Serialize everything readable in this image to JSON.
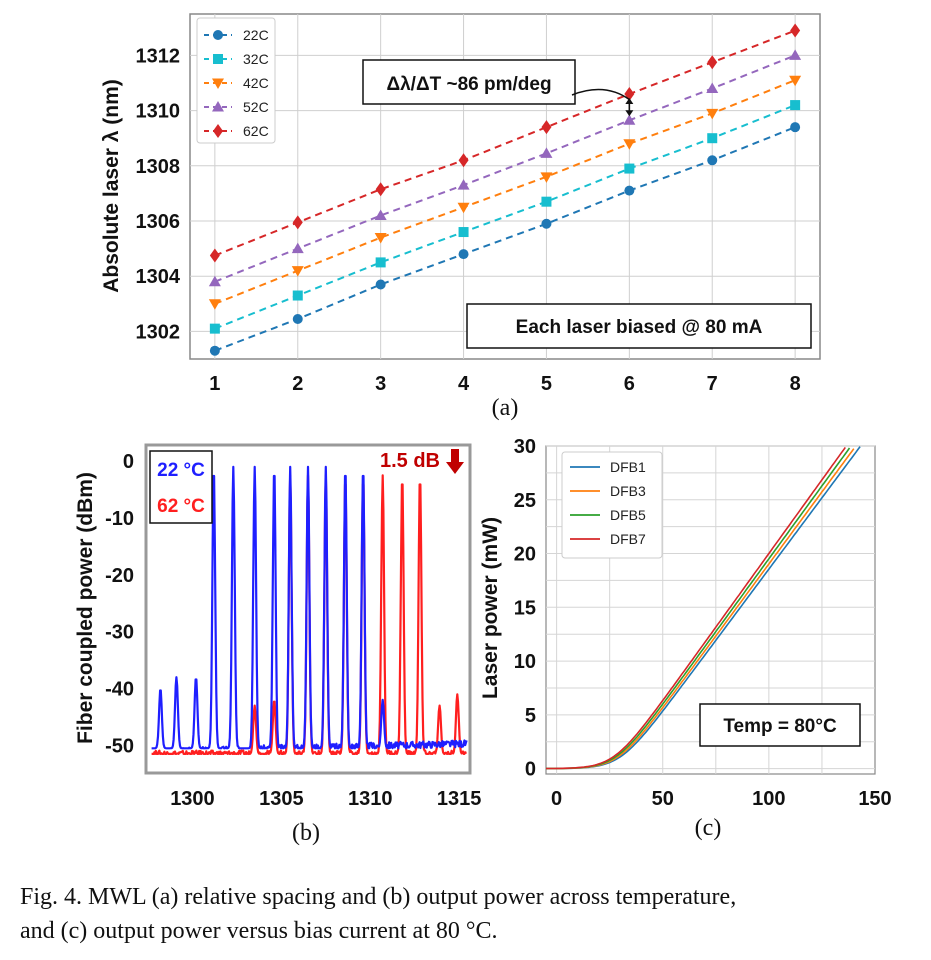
{
  "panel_labels": {
    "a": "(a)",
    "b": "(b)",
    "c": "(c)"
  },
  "caption": {
    "line1": "Fig. 4.   MWL (a) relative spacing and (b) output power across temperature,",
    "line2": "and (c) output power versus bias current at 80 °C."
  },
  "chart_data": [
    {
      "type": "line",
      "title": "",
      "xlabel": "",
      "ylabel": "Absolute laser λ (nm)",
      "x": [
        1,
        2,
        3,
        4,
        5,
        6,
        7,
        8
      ],
      "xlim": [
        0.7,
        8.3
      ],
      "ylim": [
        1301.0,
        1313.5
      ],
      "xticks": [
        1,
        2,
        3,
        4,
        5,
        6,
        7,
        8
      ],
      "yticks": [
        1302,
        1304,
        1306,
        1308,
        1310,
        1312
      ],
      "grid": true,
      "legend": "top-left",
      "series": [
        {
          "name": "22C",
          "color": "#1f77b4",
          "marker": "circle",
          "values": [
            1301.3,
            1302.45,
            1303.7,
            1304.8,
            1305.9,
            1307.1,
            1308.2,
            1309.4
          ]
        },
        {
          "name": "32C",
          "color": "#17becf",
          "marker": "square",
          "values": [
            1302.1,
            1303.3,
            1304.5,
            1305.6,
            1306.7,
            1307.9,
            1309.0,
            1310.2
          ]
        },
        {
          "name": "42C",
          "color": "#ff7f0e",
          "marker": "triangle-down",
          "values": [
            1303.0,
            1304.2,
            1305.4,
            1306.5,
            1307.6,
            1308.8,
            1309.9,
            1311.1
          ]
        },
        {
          "name": "52C",
          "color": "#9467bd",
          "marker": "triangle-up",
          "values": [
            1303.8,
            1305.0,
            1306.2,
            1307.3,
            1308.45,
            1309.65,
            1310.8,
            1312.0
          ]
        },
        {
          "name": "62C",
          "color": "#d62728",
          "marker": "diamond",
          "values": [
            1304.75,
            1305.95,
            1307.15,
            1308.2,
            1309.4,
            1310.6,
            1311.75,
            1312.9
          ]
        }
      ],
      "annotations": [
        {
          "text": "Δλ/ΔT ~86 pm/deg",
          "target_x": 6,
          "from": 1309.65,
          "to": 1310.6
        },
        {
          "text": "Each laser biased @ 80 mA",
          "position": "bottom-right"
        }
      ]
    },
    {
      "type": "line",
      "title": "",
      "xlabel": "",
      "ylabel": "Fiber coupled power (dBm)",
      "xlim": [
        1297.5,
        1315.5
      ],
      "ylim": [
        -54.5,
        2.5
      ],
      "xticks": [
        1300,
        1305,
        1310,
        1315
      ],
      "yticks": [
        0,
        -10,
        -20,
        -30,
        -40,
        -50
      ],
      "grid": false,
      "legend": "top-left",
      "floor_dbm": -51.5,
      "series": [
        {
          "name": "22 °C",
          "color": "#1f1fff",
          "peaks_nm": [
            1298.2,
            1299.1,
            1300.2,
            1301.2,
            1302.3,
            1303.5,
            1304.6,
            1305.5,
            1306.5,
            1307.5,
            1308.6,
            1309.6,
            1310.7
          ],
          "peaks_dbm": [
            -40,
            -38,
            -38,
            -1,
            -1,
            -1,
            -1,
            -1,
            -1,
            -1,
            -1,
            -1,
            -42
          ]
        },
        {
          "name": "62 °C",
          "color": "#ff1f1f",
          "peaks_nm": [
            1303.5,
            1304.6,
            1305.5,
            1306.5,
            1307.5,
            1308.6,
            1309.6,
            1310.7,
            1311.8,
            1312.8,
            1313.9,
            1314.9
          ],
          "peaks_dbm": [
            -43,
            -42,
            -2.5,
            -2.5,
            -2.5,
            -2.5,
            -2.5,
            -2.5,
            -2.5,
            -2.5,
            -43,
            -41
          ]
        }
      ],
      "annotations": [
        {
          "text": "1.5 dB",
          "position": "top-right",
          "color": "#c00000"
        }
      ]
    },
    {
      "type": "line",
      "title": "",
      "xlabel": "",
      "ylabel": "Laser power (mW)",
      "xlim": [
        -5,
        150
      ],
      "ylim": [
        -0.5,
        30
      ],
      "xticks": [
        0,
        50,
        100,
        150
      ],
      "yticks": [
        0,
        5,
        10,
        15,
        20,
        25,
        30
      ],
      "grid": true,
      "legend": "top-left",
      "series": [
        {
          "name": "DFB1",
          "color": "#1f77b4",
          "threshold": 30,
          "slope": 0.265
        },
        {
          "name": "DFB3",
          "color": "#ff7f0e",
          "threshold": 29,
          "slope": 0.268
        },
        {
          "name": "DFB5",
          "color": "#2ca02c",
          "threshold": 28,
          "slope": 0.271
        },
        {
          "name": "DFB7",
          "color": "#d62728",
          "threshold": 27,
          "slope": 0.274
        }
      ],
      "annotations": [
        {
          "text": "Temp = 80°C",
          "position": "bottom-right"
        }
      ]
    }
  ]
}
